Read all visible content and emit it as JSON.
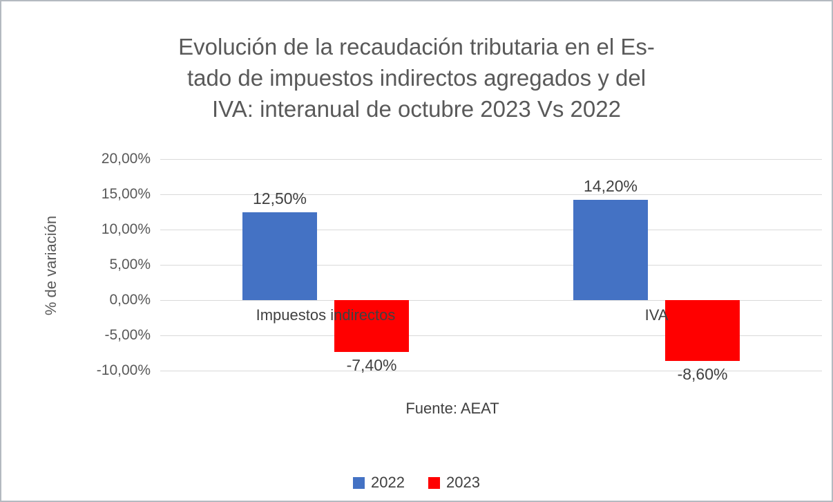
{
  "display": {
    "title": "Evolución de la recaudación tributaria en el Es-\ntado de impuestos indirectos agregados y del\nIVA: interanual de octubre 2023 Vs 2022"
  },
  "chart_data": {
    "type": "bar",
    "title": "Evolución de la recaudación tributaria en el Estado de impuestos indirectos agregados y del IVA: interanual de octubre 2023 Vs 2022",
    "categories": [
      "Impuestos indirectos",
      "IVA"
    ],
    "series": [
      {
        "name": "2022",
        "color": "#4472C4",
        "values": [
          12.5,
          14.2
        ],
        "labels": [
          "12,50%",
          "14,20%"
        ]
      },
      {
        "name": "2023",
        "color": "#FF0000",
        "values": [
          -7.4,
          -8.6
        ],
        "labels": [
          "-7,40%",
          "-8,60%"
        ]
      }
    ],
    "ylabel": "% de variación",
    "xlabel": "Fuente: AEAT",
    "ylim": [
      -10,
      20
    ],
    "ytick_step": 5,
    "ytick_labels": [
      "20,00%",
      "15,00%",
      "10,00%",
      "5,00%",
      "0,00%",
      "-5,00%",
      "-10,00%"
    ],
    "grid": true,
    "legend_position": "bottom"
  }
}
